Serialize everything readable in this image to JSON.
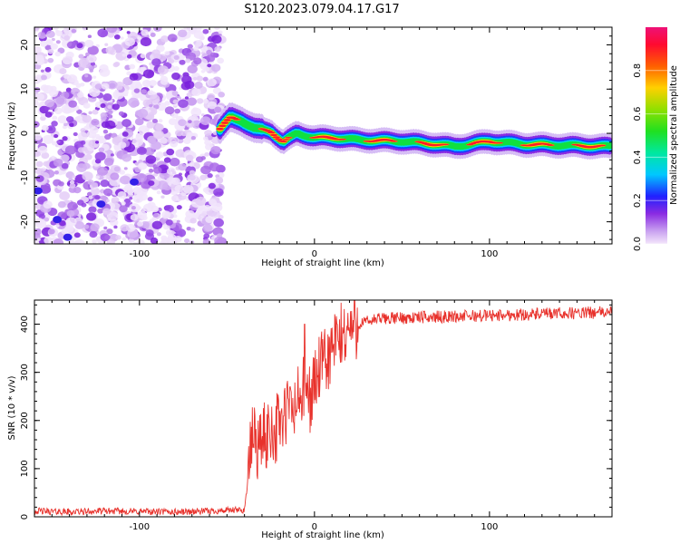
{
  "title": "S120.2023.079.04.17.G17",
  "chart_data": [
    {
      "type": "heatmap",
      "xlabel": "Height of straight line (km)",
      "ylabel": "Frequency (Hz)",
      "xlim": [
        -160,
        170
      ],
      "ylim": [
        -25,
        24
      ],
      "xticks": [
        -100,
        0,
        100
      ],
      "yticks": [
        -20,
        -10,
        0,
        10,
        20
      ],
      "noise_region": [
        -160,
        -53
      ],
      "ridge": [
        {
          "x": -54,
          "y": 1.0
        },
        {
          "x": -48,
          "y": 3.5
        },
        {
          "x": -42,
          "y": 3.0
        },
        {
          "x": -34,
          "y": 1.0
        },
        {
          "x": -25,
          "y": 0.5
        },
        {
          "x": -18,
          "y": -2.0
        },
        {
          "x": -10,
          "y": 0.0
        },
        {
          "x": 0,
          "y": -1.0
        },
        {
          "x": 10,
          "y": -1.0
        },
        {
          "x": 25,
          "y": -1.5
        },
        {
          "x": 50,
          "y": -1.8
        },
        {
          "x": 70,
          "y": -2.5
        },
        {
          "x": 80,
          "y": -3.0
        },
        {
          "x": 100,
          "y": -1.8
        },
        {
          "x": 120,
          "y": -2.5
        },
        {
          "x": 150,
          "y": -2.8
        },
        {
          "x": 170,
          "y": -3.0
        }
      ]
    },
    {
      "type": "line",
      "xlabel": "Height of straight line (km)",
      "ylabel": "SNR (10 * v/v)",
      "xlim": [
        -160,
        170
      ],
      "ylim": [
        0,
        450
      ],
      "xticks": [
        -100,
        0,
        100
      ],
      "yticks": [
        0,
        100,
        200,
        300,
        400
      ],
      "series": [
        {
          "name": "SNR",
          "color": "#e8322c",
          "x": [
            -160,
            -140,
            -120,
            -100,
            -80,
            -60,
            -40,
            -38,
            -35,
            -32,
            -30,
            -28,
            -25,
            -22,
            -20,
            -18,
            -15,
            -12,
            -10,
            -8,
            -5,
            -2,
            0,
            2,
            5,
            8,
            10,
            12,
            15,
            18,
            20,
            25,
            30,
            35,
            40,
            50,
            60,
            70,
            80,
            90,
            100,
            110,
            120,
            130,
            140,
            150,
            160,
            170
          ],
          "values": [
            12,
            10,
            12,
            11,
            10,
            12,
            14,
            80,
            180,
            140,
            170,
            160,
            190,
            175,
            210,
            190,
            230,
            215,
            240,
            250,
            265,
            245,
            280,
            300,
            315,
            330,
            345,
            360,
            370,
            385,
            390,
            400,
            405,
            410,
            412,
            413,
            414,
            415,
            416,
            417,
            418,
            419,
            420,
            421,
            422,
            423,
            424,
            425
          ]
        }
      ],
      "spike": {
        "x": -5.5,
        "value": 400
      }
    }
  ],
  "colorbar": {
    "label": "Normalized spectral amplitude",
    "ticks": [
      0.0,
      0.2,
      0.4,
      0.6,
      0.8
    ],
    "tick_labels": [
      "0.0",
      "0.2",
      "0.4",
      "0.6",
      "0.8"
    ]
  }
}
